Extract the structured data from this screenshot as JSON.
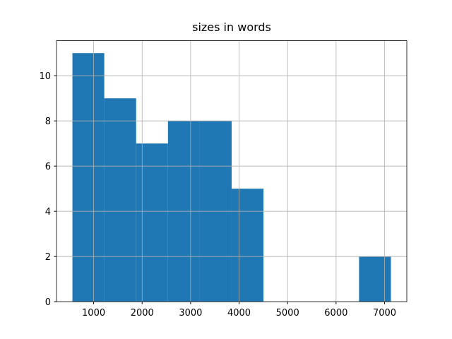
{
  "chart_data": {
    "type": "histogram",
    "title": "sizes in words",
    "bins": [
      562,
      1219,
      1876,
      2533,
      3190,
      3846,
      4503,
      5160,
      5817,
      6474,
      7131
    ],
    "values": [
      11,
      9,
      7,
      8,
      8,
      5,
      0,
      0,
      0,
      2
    ],
    "color": "#1f77b4",
    "xlim": [
      234,
      7459
    ],
    "xticks": [
      1000,
      2000,
      3000,
      4000,
      5000,
      6000,
      7000
    ],
    "ylim": [
      0,
      11.55
    ],
    "yticks": [
      0,
      2,
      4,
      6,
      8,
      10
    ],
    "grid": true
  }
}
